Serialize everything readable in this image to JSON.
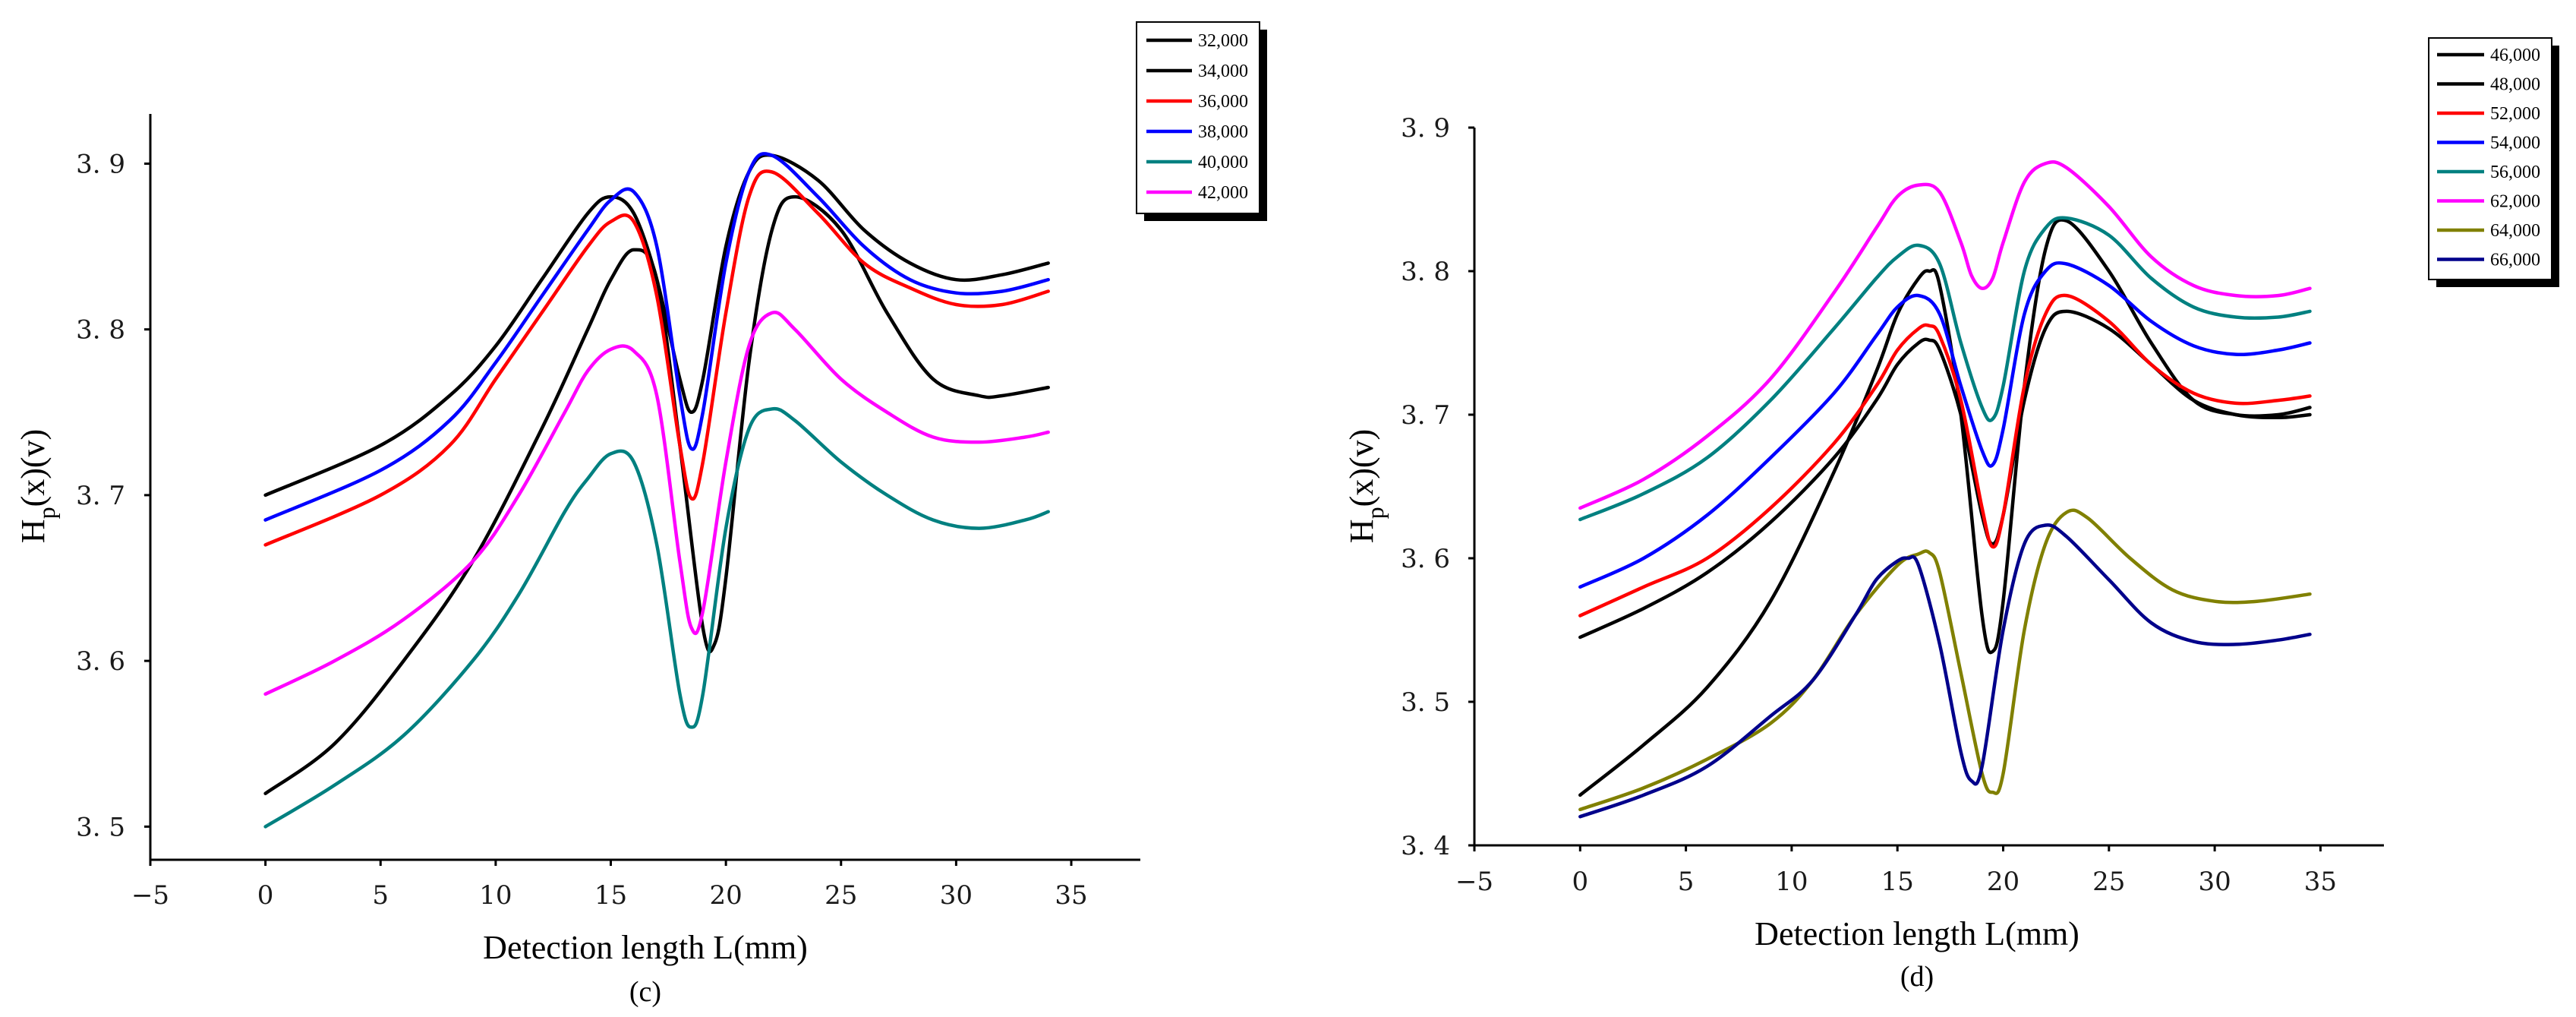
{
  "chart_data": [
    {
      "type": "line",
      "panel": "(c)",
      "xlabel": "Detection length L(mm)",
      "ylabel_main": "H",
      "ylabel_sub": "p",
      "ylabel_rest": "(x)(v)",
      "xlim": [
        -5,
        38
      ],
      "ylim": [
        3.48,
        3.93
      ],
      "xticks": [
        -5,
        0,
        5,
        10,
        15,
        20,
        25,
        30,
        35
      ],
      "xtick_labels": [
        "−5",
        "0",
        "5",
        "10",
        "15",
        "20",
        "25",
        "30",
        "35"
      ],
      "yticks": [
        3.5,
        3.6,
        3.7,
        3.8,
        3.9
      ],
      "ytick_labels": [
        "3. 5",
        "3. 6",
        "3. 7",
        "3. 8",
        "3. 9"
      ],
      "legend_position": "top-right",
      "series": [
        {
          "name": "32,000",
          "color": "#000000",
          "x": [
            0,
            5,
            8,
            10,
            12,
            14,
            15,
            16,
            17,
            18,
            18.5,
            19,
            20,
            21,
            22,
            24,
            26,
            28,
            30,
            32,
            34
          ],
          "y": [
            3.7,
            3.73,
            3.76,
            3.79,
            3.83,
            3.87,
            3.88,
            3.87,
            3.83,
            3.77,
            3.75,
            3.77,
            3.85,
            3.895,
            3.905,
            3.89,
            3.86,
            3.84,
            3.83,
            3.833,
            3.84
          ]
        },
        {
          "name": "34,000",
          "color": "#000000",
          "x": [
            0,
            3,
            6,
            9,
            12,
            14,
            15,
            16,
            17,
            18,
            19,
            19.5,
            20,
            21,
            22,
            23,
            25,
            27,
            29,
            31,
            32,
            34
          ],
          "y": [
            3.52,
            3.55,
            3.6,
            3.66,
            3.74,
            3.8,
            3.83,
            3.848,
            3.83,
            3.73,
            3.62,
            3.61,
            3.65,
            3.78,
            3.86,
            3.88,
            3.86,
            3.81,
            3.77,
            3.76,
            3.76,
            3.765
          ]
        },
        {
          "name": "36,000",
          "color": "#ff0000",
          "x": [
            0,
            5,
            8,
            10,
            12,
            14,
            15,
            16,
            17,
            18,
            18.5,
            19,
            20,
            21,
            22,
            24,
            26,
            28,
            30,
            32,
            34
          ],
          "y": [
            3.67,
            3.7,
            3.73,
            3.77,
            3.81,
            3.85,
            3.865,
            3.865,
            3.82,
            3.73,
            3.698,
            3.72,
            3.81,
            3.88,
            3.895,
            3.87,
            3.84,
            3.825,
            3.815,
            3.815,
            3.823
          ]
        },
        {
          "name": "38,000",
          "color": "#0000ff",
          "x": [
            0,
            5,
            8,
            10,
            12,
            14,
            15,
            16,
            17,
            18,
            18.5,
            19,
            20,
            21,
            22,
            24,
            26,
            28,
            30,
            32,
            34
          ],
          "y": [
            3.685,
            3.715,
            3.745,
            3.78,
            3.82,
            3.86,
            3.878,
            3.883,
            3.85,
            3.76,
            3.728,
            3.75,
            3.84,
            3.895,
            3.905,
            3.88,
            3.85,
            3.83,
            3.822,
            3.823,
            3.83
          ]
        },
        {
          "name": "40,000",
          "color": "#008080",
          "x": [
            0,
            3,
            6,
            9,
            11,
            13,
            14,
            15,
            16,
            17,
            18,
            18.5,
            19,
            20,
            21,
            22,
            23,
            25,
            27,
            29,
            31,
            33,
            34
          ],
          "y": [
            3.5,
            3.525,
            3.555,
            3.6,
            3.64,
            3.69,
            3.71,
            3.725,
            3.72,
            3.67,
            3.58,
            3.56,
            3.58,
            3.68,
            3.74,
            3.752,
            3.745,
            3.72,
            3.7,
            3.685,
            3.68,
            3.685,
            3.69
          ]
        },
        {
          "name": "42,000",
          "color": "#ff00ff",
          "x": [
            0,
            3,
            6,
            9,
            11,
            13,
            14,
            15,
            16,
            17,
            18,
            18.5,
            19,
            20,
            21,
            22,
            23,
            25,
            27,
            29,
            31,
            33,
            34
          ],
          "y": [
            3.58,
            3.6,
            3.625,
            3.66,
            3.7,
            3.75,
            3.775,
            3.788,
            3.787,
            3.76,
            3.66,
            3.62,
            3.63,
            3.72,
            3.79,
            3.81,
            3.8,
            3.77,
            3.75,
            3.735,
            3.732,
            3.735,
            3.738
          ]
        }
      ]
    },
    {
      "type": "line",
      "panel": "(d)",
      "xlabel": "Detection length L(mm)",
      "ylabel_main": "H",
      "ylabel_sub": "p",
      "ylabel_rest": "(x)(v)",
      "xlim": [
        -5,
        38
      ],
      "ylim": [
        3.4,
        3.9
      ],
      "xticks": [
        -5,
        0,
        5,
        10,
        15,
        20,
        25,
        30,
        35
      ],
      "xtick_labels": [
        "−5",
        "0",
        "5",
        "10",
        "15",
        "20",
        "25",
        "30",
        "35"
      ],
      "yticks": [
        3.4,
        3.5,
        3.6,
        3.7,
        3.8,
        3.9
      ],
      "ytick_labels": [
        "3. 4",
        "3. 5",
        "3. 6",
        "3. 7",
        "3. 8",
        "3. 9"
      ],
      "legend_position": "top-right",
      "series": [
        {
          "name": "46,000",
          "color": "#000000",
          "x": [
            0,
            3,
            6,
            9,
            12,
            14,
            15,
            16,
            16.5,
            17,
            18,
            19,
            19.5,
            20,
            21,
            22,
            23,
            25,
            27,
            29,
            31,
            33,
            34.5
          ],
          "y": [
            3.435,
            3.47,
            3.51,
            3.57,
            3.66,
            3.73,
            3.77,
            3.795,
            3.8,
            3.79,
            3.7,
            3.56,
            3.535,
            3.57,
            3.72,
            3.815,
            3.835,
            3.8,
            3.75,
            3.71,
            3.7,
            3.7,
            3.705
          ]
        },
        {
          "name": "48,000",
          "color": "#000000",
          "x": [
            0,
            3,
            6,
            9,
            12,
            14,
            15,
            16,
            16.5,
            17,
            18,
            19,
            19.5,
            20,
            21,
            22,
            23,
            25,
            27,
            29,
            31,
            33,
            34.5
          ],
          "y": [
            3.545,
            3.565,
            3.59,
            3.625,
            3.67,
            3.71,
            3.735,
            3.75,
            3.752,
            3.745,
            3.7,
            3.63,
            3.61,
            3.63,
            3.71,
            3.76,
            3.772,
            3.76,
            3.735,
            3.71,
            3.7,
            3.698,
            3.7
          ]
        },
        {
          "name": "52,000",
          "color": "#ff0000",
          "x": [
            0,
            3,
            6,
            9,
            12,
            14,
            15,
            16,
            16.5,
            17,
            18,
            19,
            19.5,
            20,
            21,
            22,
            23,
            25,
            27,
            29,
            31,
            33,
            34.5
          ],
          "y": [
            3.56,
            3.58,
            3.6,
            3.635,
            3.68,
            3.72,
            3.745,
            3.76,
            3.762,
            3.755,
            3.71,
            3.635,
            3.608,
            3.63,
            3.72,
            3.77,
            3.783,
            3.765,
            3.735,
            3.715,
            3.708,
            3.71,
            3.713
          ]
        },
        {
          "name": "54,000",
          "color": "#0000ff",
          "x": [
            0,
            3,
            6,
            9,
            12,
            14,
            15,
            16,
            17,
            18,
            19,
            19.5,
            20,
            21,
            22,
            23,
            25,
            27,
            29,
            31,
            33,
            34.5
          ],
          "y": [
            3.58,
            3.6,
            3.63,
            3.67,
            3.715,
            3.755,
            3.775,
            3.783,
            3.77,
            3.72,
            3.675,
            3.665,
            3.69,
            3.77,
            3.8,
            3.805,
            3.79,
            3.765,
            3.748,
            3.742,
            3.745,
            3.75
          ]
        },
        {
          "name": "56,000",
          "color": "#008080",
          "x": [
            0,
            3,
            6,
            9,
            12,
            14,
            15,
            16,
            17,
            18,
            19,
            19.5,
            20,
            21,
            22,
            23,
            25,
            27,
            29,
            31,
            33,
            34.5
          ],
          "y": [
            3.627,
            3.645,
            3.67,
            3.71,
            3.76,
            3.795,
            3.81,
            3.818,
            3.805,
            3.75,
            3.705,
            3.697,
            3.72,
            3.8,
            3.83,
            3.837,
            3.825,
            3.795,
            3.775,
            3.768,
            3.768,
            3.772
          ]
        },
        {
          "name": "62,000",
          "color": "#ff00ff",
          "x": [
            0,
            3,
            6,
            9,
            12,
            14,
            15,
            16,
            17,
            18,
            18.5,
            19,
            19.5,
            20,
            21,
            22,
            23,
            25,
            27,
            29,
            31,
            33,
            34.5
          ],
          "y": [
            3.635,
            3.655,
            3.685,
            3.725,
            3.785,
            3.83,
            3.852,
            3.86,
            3.855,
            3.82,
            3.797,
            3.788,
            3.795,
            3.82,
            3.862,
            3.875,
            3.872,
            3.845,
            3.81,
            3.79,
            3.783,
            3.783,
            3.788
          ]
        },
        {
          "name": "64,000",
          "color": "#808000",
          "x": [
            0,
            3,
            6,
            9,
            11,
            13,
            15,
            16,
            16.5,
            17,
            18,
            19,
            19.5,
            20,
            21,
            22,
            23,
            24,
            26,
            28,
            30,
            32,
            34.5
          ],
          "y": [
            3.425,
            3.44,
            3.46,
            3.485,
            3.515,
            3.56,
            3.595,
            3.603,
            3.604,
            3.59,
            3.52,
            3.45,
            3.437,
            3.45,
            3.55,
            3.61,
            3.632,
            3.628,
            3.6,
            3.578,
            3.57,
            3.57,
            3.575
          ]
        },
        {
          "name": "66,000",
          "color": "#00008b",
          "x": [
            0,
            3,
            6,
            9,
            11,
            13,
            14,
            15,
            15.5,
            16,
            17,
            18,
            18.5,
            19,
            20,
            21,
            22,
            23,
            25,
            27,
            29,
            31,
            33,
            34.5
          ],
          "y": [
            3.42,
            3.435,
            3.455,
            3.49,
            3.515,
            3.56,
            3.585,
            3.598,
            3.6,
            3.595,
            3.54,
            3.465,
            3.445,
            3.455,
            3.55,
            3.61,
            3.623,
            3.615,
            3.585,
            3.555,
            3.542,
            3.54,
            3.543,
            3.547
          ]
        }
      ]
    }
  ]
}
